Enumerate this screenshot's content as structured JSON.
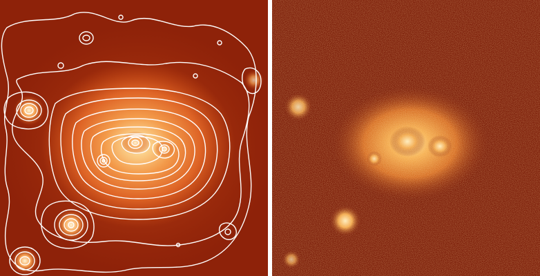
{
  "figure": {
    "panels": [
      {
        "id": "left",
        "kind": "astronomical-image-with-contours",
        "colormap": "red-orange-white",
        "contour_color": "#ffffff"
      },
      {
        "id": "right",
        "kind": "astronomical-image",
        "colormap": "red-orange-white"
      }
    ],
    "colors": {
      "background_dark": "#7a1a06",
      "mid": "#c84812",
      "bright": "#f7b04a",
      "core": "#fff6d8"
    }
  }
}
